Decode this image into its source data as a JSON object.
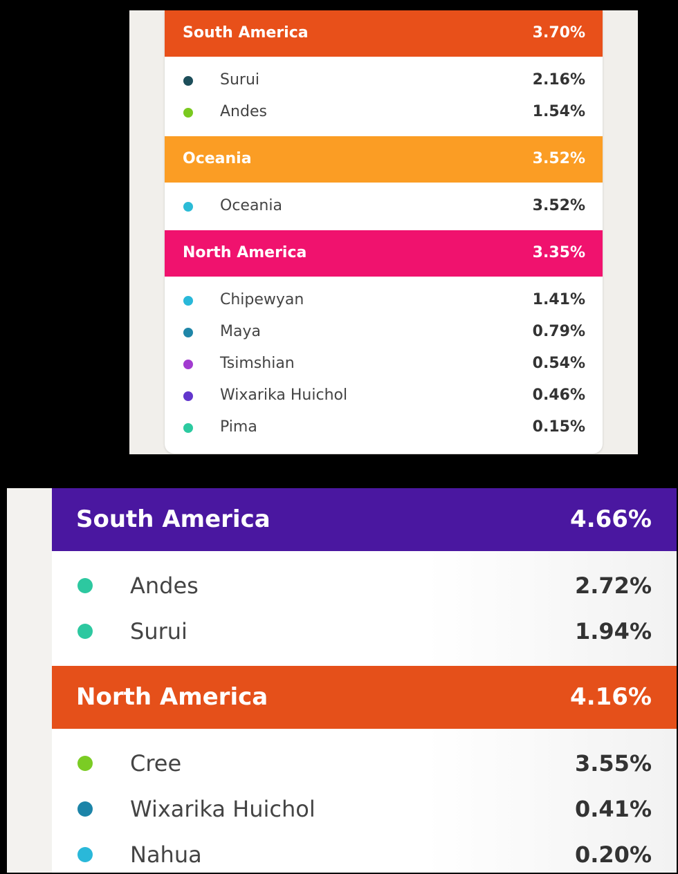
{
  "panels": [
    {
      "sections": [
        {
          "name": "South America",
          "percent": "3.70%",
          "color": "#e8501a",
          "items": [
            {
              "name": "Surui",
              "percent": "2.16%",
              "color": "#1d4e5a"
            },
            {
              "name": "Andes",
              "percent": "1.54%",
              "color": "#7ac91f"
            }
          ]
        },
        {
          "name": "Oceania",
          "percent": "3.52%",
          "color": "#fb9d24",
          "items": [
            {
              "name": "Oceania",
              "percent": "3.52%",
              "color": "#2bbbd6"
            }
          ]
        },
        {
          "name": "North America",
          "percent": "3.35%",
          "color": "#f0126e",
          "items": [
            {
              "name": "Chipewyan",
              "percent": "1.41%",
              "color": "#29b8d9"
            },
            {
              "name": "Maya",
              "percent": "0.79%",
              "color": "#1f86a8"
            },
            {
              "name": "Tsimshian",
              "percent": "0.54%",
              "color": "#a23bd0"
            },
            {
              "name": "Wixarika Huichol",
              "percent": "0.46%",
              "color": "#6236cc"
            },
            {
              "name": "Pima",
              "percent": "0.15%",
              "color": "#2ccaa0"
            }
          ]
        }
      ]
    },
    {
      "sections": [
        {
          "name": "South America",
          "percent": "4.66%",
          "color": "#4a17a0",
          "items": [
            {
              "name": "Andes",
              "percent": "2.72%",
              "color": "#2dc8a0"
            },
            {
              "name": "Surui",
              "percent": "1.94%",
              "color": "#2dc8a0"
            }
          ]
        },
        {
          "name": "North America",
          "percent": "4.16%",
          "color": "#e5501a",
          "items": [
            {
              "name": "Cree",
              "percent": "3.55%",
              "color": "#7bcc24"
            },
            {
              "name": "Wixarika Huichol",
              "percent": "0.41%",
              "color": "#1c84a8"
            },
            {
              "name": "Nahua",
              "percent": "0.20%",
              "color": "#2ab8d9"
            }
          ]
        }
      ]
    }
  ]
}
